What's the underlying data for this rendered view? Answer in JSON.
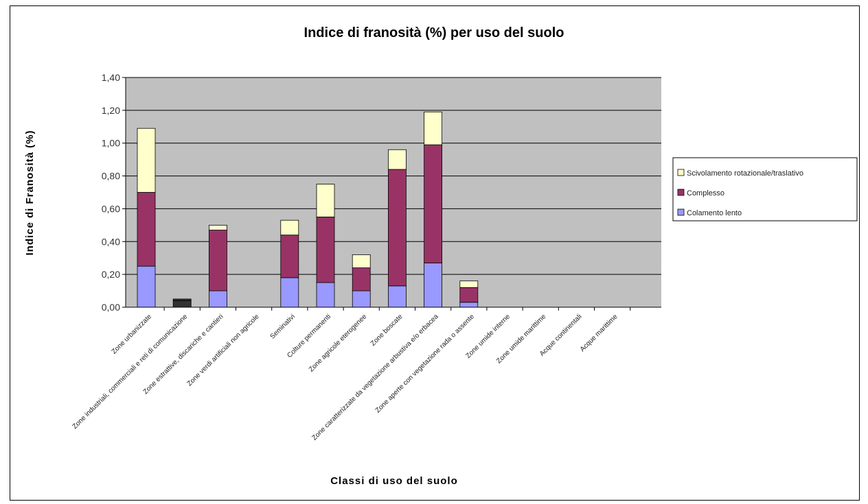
{
  "chart_data": {
    "type": "bar",
    "stacked": true,
    "title": "Indice di franosità (%) per uso del suolo",
    "xlabel": "Classi di uso del suolo",
    "ylabel": "Indice di Franosità (%)",
    "ylim": [
      0,
      1.4
    ],
    "yticks": [
      "0,00",
      "0,20",
      "0,40",
      "0,60",
      "0,80",
      "1,00",
      "1,20",
      "1,40"
    ],
    "grid": true,
    "legend_position": "right",
    "categories": [
      "Zone urbanizzate",
      "Zone industriali, commerciali e reti di comunicazione",
      "Zone estrattive, discariche e cantieri",
      "Zone verdi artificiali non agricole",
      "Seminativi",
      "Colture permanenti",
      "Zone agricole eterogenee",
      "Zone boscate",
      "Zone caratterizzate da vegetazione arbustiva e/o erbacea",
      "Zone aperte con vegetazione rada o assente",
      "Zone umide interne",
      "Zone umide marittime",
      "Acque continentali",
      "Acque marittime"
    ],
    "series": [
      {
        "name": "Colamento lento",
        "color": "#9999ff",
        "values": [
          0.25,
          0.04,
          0.1,
          0,
          0.18,
          0.15,
          0.1,
          0.13,
          0.27,
          0.03,
          0,
          0,
          0,
          0
        ]
      },
      {
        "name": "Complesso",
        "color": "#993366",
        "values": [
          0.45,
          0.01,
          0.37,
          0,
          0.26,
          0.4,
          0.14,
          0.71,
          0.72,
          0.09,
          0,
          0,
          0,
          0
        ]
      },
      {
        "name": "Scivolamento rotazionale/traslativo",
        "color": "#ffffcc",
        "values": [
          0.39,
          0,
          0.03,
          0,
          0.09,
          0.2,
          0.08,
          0.12,
          0.2,
          0.04,
          0,
          0,
          0,
          0
        ]
      }
    ],
    "colors": {
      "plot_background": "#c0c0c0",
      "gridline": "#000000",
      "small_bar": "#333333"
    }
  }
}
